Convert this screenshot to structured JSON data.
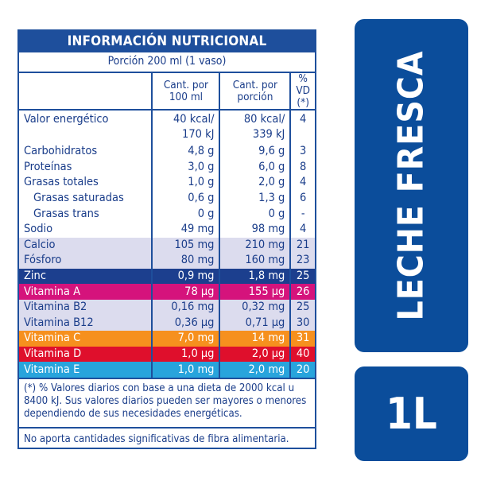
{
  "title": "INFORMACIÓN NUTRICIONAL",
  "portion": "Porción 200 ml (1 vaso)",
  "headers": [
    "",
    "Cant. por\n100 ml",
    "Cant. por\nporción",
    "% VD\n(*)"
  ],
  "rows": [
    {
      "name": "Valor energético",
      "per100": "40 kcal/\n170 kJ",
      "perPortion": "80 kcal/\n339 kJ",
      "vd": "4",
      "bg": "#ffffff",
      "fg": "#1a3d8a"
    },
    {
      "name": "Carbohidratos",
      "per100": "4,8 g",
      "perPortion": "9,6 g",
      "vd": "3",
      "bg": "#ffffff",
      "fg": "#1a3d8a"
    },
    {
      "name": "Proteínas",
      "per100": "3,0 g",
      "perPortion": "6,0 g",
      "vd": "8",
      "bg": "#ffffff",
      "fg": "#1a3d8a"
    },
    {
      "name": "Grasas totales",
      "per100": "1,0 g",
      "perPortion": "2,0 g",
      "vd": "4",
      "bg": "#ffffff",
      "fg": "#1a3d8a"
    },
    {
      "name": "Grasas saturadas",
      "per100": "0,6 g",
      "perPortion": "1,3 g",
      "vd": "6",
      "bg": "#ffffff",
      "fg": "#1a3d8a",
      "indent": true
    },
    {
      "name": "Grasas trans",
      "per100": "0 g",
      "perPortion": "0 g",
      "vd": "-",
      "bg": "#ffffff",
      "fg": "#1a3d8a",
      "indent": true
    },
    {
      "name": "Sodio",
      "per100": "49 mg",
      "perPortion": "98 mg",
      "vd": "4",
      "bg": "#ffffff",
      "fg": "#1a3d8a"
    },
    {
      "name": "Calcio",
      "per100": "105 mg",
      "perPortion": "210 mg",
      "vd": "21",
      "bg": "#dcdcee",
      "fg": "#1a3d8a"
    },
    {
      "name": "Fósforo",
      "per100": "80 mg",
      "perPortion": "160 mg",
      "vd": "23",
      "bg": "#dcdcee",
      "fg": "#1a3d8a"
    },
    {
      "name": "Zinc",
      "per100": "0,9 mg",
      "perPortion": "1,8 mg",
      "vd": "25",
      "bg": "#1c3f8e",
      "fg": "#ffffff"
    },
    {
      "name": "Vitamina A",
      "per100": "78 µg",
      "perPortion": "155 µg",
      "vd": "26",
      "bg": "#d5137c",
      "fg": "#ffffff"
    },
    {
      "name": "Vitamina B2",
      "per100": "0,16 mg",
      "perPortion": "0,32 mg",
      "vd": "25",
      "bg": "#dcdcee",
      "fg": "#1a3d8a"
    },
    {
      "name": "Vitamina B12",
      "per100": "0,36 µg",
      "perPortion": "0,71 µg",
      "vd": "30",
      "bg": "#dcdcee",
      "fg": "#1a3d8a"
    },
    {
      "name": "Vitamina C",
      "per100": "7,0 mg",
      "perPortion": "14 mg",
      "vd": "31",
      "bg": "#f6901e",
      "fg": "#ffffff"
    },
    {
      "name": "Vitamina D",
      "per100": "1,0 µg",
      "perPortion": "2,0 µg",
      "vd": "40",
      "bg": "#df0f2c",
      "fg": "#ffffff"
    },
    {
      "name": "Vitamina E",
      "per100": "1,0 mg",
      "perPortion": "2,0 mg",
      "vd": "20",
      "bg": "#28a4dc",
      "fg": "#ffffff"
    }
  ],
  "footnote": "(*) % Valores diarios con base a una dieta de 2000 kcal u 8400 kJ. Sus valores diarios pueden ser mayores o menores dependiendo de sus necesidades energéticas.",
  "fiber_note": "No aporta cantidades significativas de fibra alimentaria.",
  "product_name": "LECHE FRESCA",
  "volume": "1L",
  "colors": {
    "brand_blue": "#0b4d9b",
    "table_blue": "#1e4f9c"
  }
}
